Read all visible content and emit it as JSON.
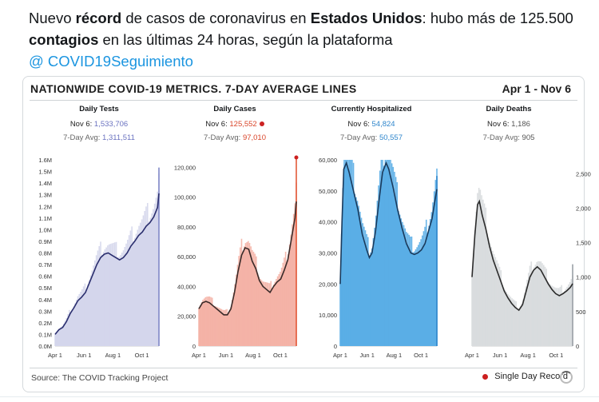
{
  "tweet": {
    "text_1": "Nuevo ",
    "bold_1": "récord",
    "text_2": " de casos de coronavirus en ",
    "bold_2": "Estados Unidos",
    "text_3": ": hubo más de 125.500 ",
    "bold_3": "contagios",
    "text_4": " en las últimas 24 horas, según la plataforma",
    "mention": "@ COVID19Seguimiento"
  },
  "card": {
    "title": "NATIONWIDE COVID-19 METRICS. 7-DAY AVERAGE LINES",
    "date_range": "Apr 1 - Nov 6",
    "source": "Source: The COVID Tracking Project",
    "legend_label": "Single Day Record"
  },
  "colors": {
    "tests": "#8189c8",
    "tests_fill": "#d4d6ec",
    "tests_line": "#2a2e6e",
    "cases": "#e25a3a",
    "cases_fill": "#f4b3a7",
    "cases_line": "#3a2a28",
    "hosp": "#2f86cc",
    "hosp_fill": "#5aaee6",
    "hosp_line": "#1a3a5c",
    "deaths": "#9aa0a6",
    "deaths_fill": "#d9dcde",
    "deaths_line": "#2b2b2b",
    "record": "#cc1f1f"
  },
  "chart_data": [
    {
      "type": "area",
      "title": "Daily Tests",
      "day_label": "Nov 6:",
      "day_value": "1,533,706",
      "avg_label": "7-Day Avg:",
      "avg_value": "1,311,511",
      "ylim": [
        0,
        1600000
      ],
      "yticks": [
        0,
        100000,
        200000,
        300000,
        400000,
        500000,
        600000,
        700000,
        800000,
        900000,
        1000000,
        1100000,
        1200000,
        1300000,
        1400000,
        1500000,
        1600000
      ],
      "ytick_labels": [
        "0.0M",
        "0.1M",
        "0.2M",
        "0.3M",
        "0.4M",
        "0.5M",
        "0.6M",
        "0.7M",
        "0.8M",
        "0.9M",
        "1.0M",
        "1.1M",
        "1.2M",
        "1.3M",
        "1.4M",
        "1.5M",
        "1.6M"
      ],
      "xticks": [
        "Apr 1",
        "Jun 1",
        "Aug 1",
        "Oct 1"
      ],
      "avg_line": [
        [
          0,
          100000
        ],
        [
          8,
          140000
        ],
        [
          16,
          160000
        ],
        [
          24,
          210000
        ],
        [
          32,
          280000
        ],
        [
          40,
          330000
        ],
        [
          48,
          390000
        ],
        [
          56,
          420000
        ],
        [
          64,
          460000
        ],
        [
          72,
          540000
        ],
        [
          80,
          620000
        ],
        [
          88,
          700000
        ],
        [
          96,
          760000
        ],
        [
          104,
          790000
        ],
        [
          112,
          800000
        ],
        [
          120,
          780000
        ],
        [
          128,
          760000
        ],
        [
          136,
          740000
        ],
        [
          144,
          760000
        ],
        [
          152,
          800000
        ],
        [
          160,
          860000
        ],
        [
          168,
          900000
        ],
        [
          176,
          950000
        ],
        [
          184,
          980000
        ],
        [
          192,
          1030000
        ],
        [
          200,
          1060000
        ],
        [
          208,
          1110000
        ],
        [
          216,
          1190000
        ],
        [
          219,
          1311511
        ]
      ],
      "last_value": 1533706,
      "record": false
    },
    {
      "type": "area",
      "title": "Daily Cases",
      "day_label": "Nov 6:",
      "day_value": "125,552",
      "avg_label": "7-Day Avg:",
      "avg_value": "97,010",
      "ylim": [
        0,
        125000
      ],
      "yticks": [
        0,
        20000,
        40000,
        60000,
        80000,
        100000,
        120000
      ],
      "ytick_labels": [
        "0",
        "20,000",
        "40,000",
        "60,000",
        "80,000",
        "100,000",
        "120,000"
      ],
      "xticks": [
        "Apr 1",
        "Jun 1",
        "Aug 1",
        "Oct 1"
      ],
      "avg_line": [
        [
          0,
          25000
        ],
        [
          8,
          29000
        ],
        [
          16,
          30000
        ],
        [
          24,
          29000
        ],
        [
          32,
          27000
        ],
        [
          40,
          25000
        ],
        [
          48,
          23000
        ],
        [
          56,
          21000
        ],
        [
          64,
          21000
        ],
        [
          72,
          25000
        ],
        [
          80,
          36000
        ],
        [
          88,
          50000
        ],
        [
          96,
          61000
        ],
        [
          104,
          66000
        ],
        [
          112,
          65000
        ],
        [
          120,
          57000
        ],
        [
          128,
          52000
        ],
        [
          136,
          44000
        ],
        [
          144,
          40000
        ],
        [
          152,
          38000
        ],
        [
          160,
          36000
        ],
        [
          168,
          40000
        ],
        [
          176,
          43000
        ],
        [
          184,
          45000
        ],
        [
          192,
          51000
        ],
        [
          200,
          58000
        ],
        [
          208,
          72000
        ],
        [
          216,
          86000
        ],
        [
          219,
          97010
        ]
      ],
      "last_value": 125552,
      "record": true
    },
    {
      "type": "area",
      "title": "Currently Hospitalized",
      "day_label": "Nov 6:",
      "day_value": "54,824",
      "avg_label": "7-Day Avg:",
      "avg_value": "50,557",
      "ylim": [
        0,
        60000
      ],
      "yticks": [
        0,
        10000,
        20000,
        30000,
        40000,
        50000,
        60000
      ],
      "ytick_labels": [
        "0",
        "10,000",
        "20,000",
        "30,000",
        "40,000",
        "50,000",
        "60,000"
      ],
      "xticks": [
        "Apr 1",
        "Jun 1",
        "Aug 1",
        "Oct 1"
      ],
      "avg_line": [
        [
          0,
          20000
        ],
        [
          4,
          40000
        ],
        [
          8,
          57000
        ],
        [
          14,
          59000
        ],
        [
          20,
          56000
        ],
        [
          30,
          50000
        ],
        [
          40,
          44000
        ],
        [
          50,
          36000
        ],
        [
          60,
          31000
        ],
        [
          66,
          28500
        ],
        [
          72,
          30000
        ],
        [
          80,
          37000
        ],
        [
          88,
          47000
        ],
        [
          96,
          56000
        ],
        [
          104,
          59000
        ],
        [
          110,
          57000
        ],
        [
          120,
          51000
        ],
        [
          130,
          44000
        ],
        [
          140,
          38000
        ],
        [
          150,
          33000
        ],
        [
          160,
          30000
        ],
        [
          168,
          29500
        ],
        [
          176,
          30000
        ],
        [
          184,
          31000
        ],
        [
          192,
          33000
        ],
        [
          200,
          37000
        ],
        [
          208,
          41000
        ],
        [
          216,
          48000
        ],
        [
          219,
          50557
        ]
      ],
      "last_value": 54824,
      "record": false
    },
    {
      "type": "area",
      "title": "Daily Deaths",
      "day_label": "Nov 6:",
      "day_value": "1,186",
      "avg_label": "7-Day Avg:",
      "avg_value": "905",
      "ylim": [
        0,
        2700
      ],
      "yticks": [
        0,
        500,
        1000,
        1500,
        2000,
        2500
      ],
      "ytick_labels": [
        "0",
        "500",
        "1,000",
        "1,500",
        "2,000",
        "2,500"
      ],
      "xticks": [
        "Apr 1",
        "Jun 1",
        "Aug 1",
        "Oct 1"
      ],
      "avg_line": [
        [
          0,
          1000
        ],
        [
          6,
          1600
        ],
        [
          12,
          2050
        ],
        [
          16,
          2100
        ],
        [
          22,
          1900
        ],
        [
          30,
          1700
        ],
        [
          38,
          1450
        ],
        [
          46,
          1250
        ],
        [
          54,
          1100
        ],
        [
          62,
          950
        ],
        [
          70,
          800
        ],
        [
          78,
          700
        ],
        [
          86,
          620
        ],
        [
          94,
          560
        ],
        [
          102,
          520
        ],
        [
          110,
          600
        ],
        [
          118,
          800
        ],
        [
          126,
          1000
        ],
        [
          134,
          1100
        ],
        [
          142,
          1150
        ],
        [
          150,
          1100
        ],
        [
          158,
          1000
        ],
        [
          166,
          900
        ],
        [
          174,
          820
        ],
        [
          182,
          760
        ],
        [
          190,
          730
        ],
        [
          198,
          760
        ],
        [
          206,
          800
        ],
        [
          214,
          850
        ],
        [
          219,
          905
        ]
      ],
      "last_value": 1186,
      "record": false
    }
  ]
}
